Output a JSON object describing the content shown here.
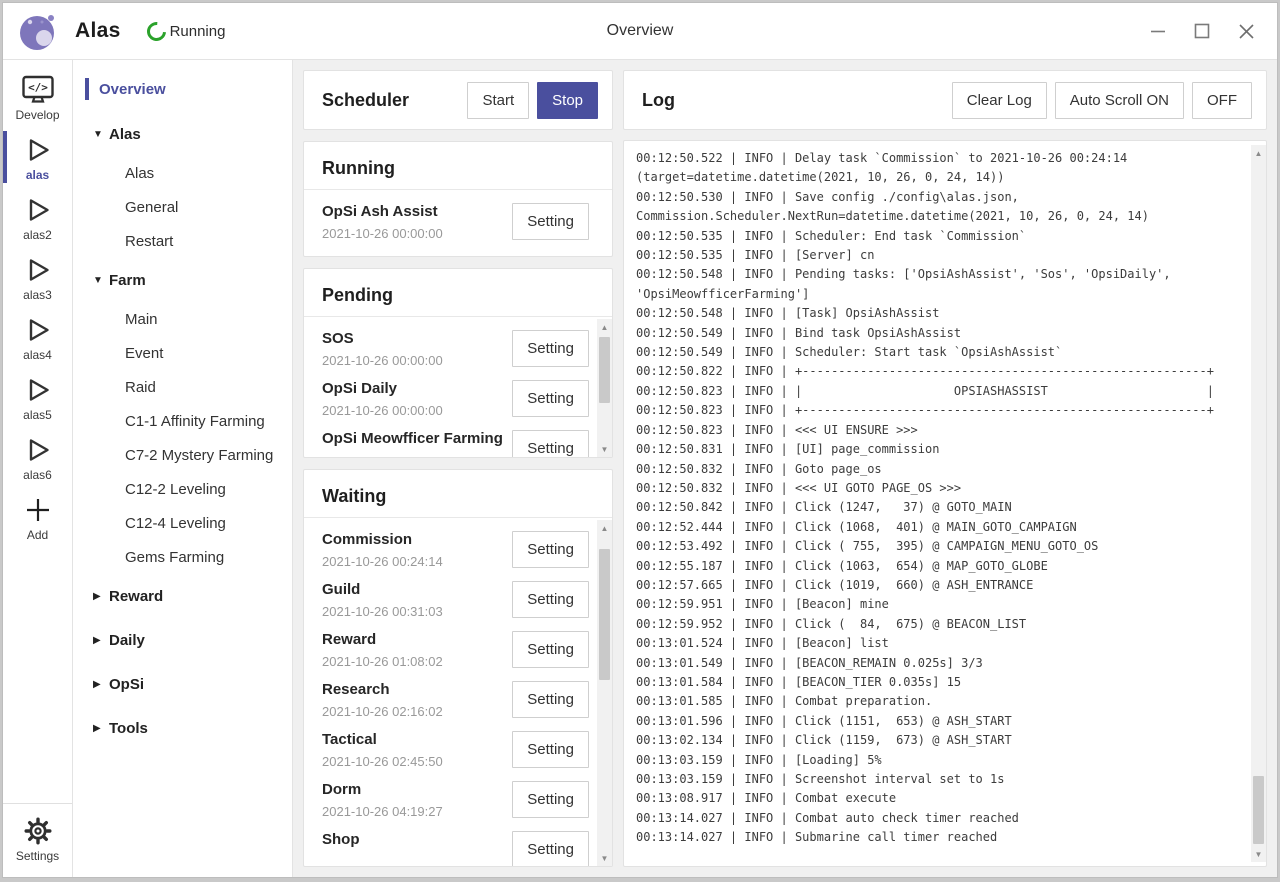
{
  "titlebar": {
    "app": "Alas",
    "status": "Running",
    "title": "Overview"
  },
  "colors": {
    "accent": "#4a4f9e",
    "status_green": "#2ba22b"
  },
  "rail": {
    "items": [
      {
        "id": "develop",
        "label": "Develop",
        "icon": "develop",
        "active": false
      },
      {
        "id": "alas",
        "label": "alas",
        "icon": "play",
        "active": true
      },
      {
        "id": "alas2",
        "label": "alas2",
        "icon": "play",
        "active": false
      },
      {
        "id": "alas3",
        "label": "alas3",
        "icon": "play",
        "active": false
      },
      {
        "id": "alas4",
        "label": "alas4",
        "icon": "play",
        "active": false
      },
      {
        "id": "alas5",
        "label": "alas5",
        "icon": "play",
        "active": false
      },
      {
        "id": "alas6",
        "label": "alas6",
        "icon": "play",
        "active": false
      },
      {
        "id": "add",
        "label": "Add",
        "icon": "add",
        "active": false
      }
    ],
    "settings_label": "Settings"
  },
  "nav": {
    "overview": "Overview",
    "groups": [
      {
        "label": "Alas",
        "expanded": true,
        "children": [
          "Alas",
          "General",
          "Restart"
        ]
      },
      {
        "label": "Farm",
        "expanded": true,
        "children": [
          "Main",
          "Event",
          "Raid",
          "C1-1 Affinity Farming",
          "C7-2 Mystery Farming",
          "C12-2 Leveling",
          "C12-4 Leveling",
          "Gems Farming"
        ]
      },
      {
        "label": "Reward",
        "expanded": false,
        "children": []
      },
      {
        "label": "Daily",
        "expanded": false,
        "children": []
      },
      {
        "label": "OpSi",
        "expanded": false,
        "children": []
      },
      {
        "label": "Tools",
        "expanded": false,
        "children": []
      }
    ]
  },
  "labels": {
    "setting": "Setting"
  },
  "scheduler": {
    "title": "Scheduler",
    "start": "Start",
    "stop": "Stop"
  },
  "running": {
    "title": "Running",
    "tasks": [
      {
        "name": "OpSi Ash Assist",
        "time": "2021-10-26 00:00:00"
      }
    ]
  },
  "pending": {
    "title": "Pending",
    "tasks": [
      {
        "name": "SOS",
        "time": "2021-10-26 00:00:00"
      },
      {
        "name": "OpSi Daily",
        "time": "2021-10-26 00:00:00"
      },
      {
        "name": "OpSi Meowfficer Farming",
        "time": ""
      }
    ]
  },
  "waiting": {
    "title": "Waiting",
    "tasks": [
      {
        "name": "Commission",
        "time": "2021-10-26 00:24:14"
      },
      {
        "name": "Guild",
        "time": "2021-10-26 00:31:03"
      },
      {
        "name": "Reward",
        "time": "2021-10-26 01:08:02"
      },
      {
        "name": "Research",
        "time": "2021-10-26 02:16:02"
      },
      {
        "name": "Tactical",
        "time": "2021-10-26 02:45:50"
      },
      {
        "name": "Dorm",
        "time": "2021-10-26 04:19:27"
      },
      {
        "name": "Shop",
        "time": ""
      }
    ]
  },
  "log": {
    "title": "Log",
    "clear": "Clear Log",
    "autoscroll": "Auto Scroll ON",
    "off": "OFF",
    "lines": [
      "00:12:50.522 | INFO | Delay task `Commission` to 2021-10-26 00:24:14",
      "(target=datetime.datetime(2021, 10, 26, 0, 24, 14))",
      "00:12:50.530 | INFO | Save config ./config\\alas.json,",
      "Commission.Scheduler.NextRun=datetime.datetime(2021, 10, 26, 0, 24, 14)",
      "00:12:50.535 | INFO | Scheduler: End task `Commission`",
      "00:12:50.535 | INFO | [Server] cn",
      "00:12:50.548 | INFO | Pending tasks: ['OpsiAshAssist', 'Sos', 'OpsiDaily',",
      "'OpsiMeowfficerFarming']",
      "00:12:50.548 | INFO | [Task] OpsiAshAssist",
      "00:12:50.549 | INFO | Bind task OpsiAshAssist",
      "00:12:50.549 | INFO | Scheduler: Start task `OpsiAshAssist`",
      "00:12:50.822 | INFO | +--------------------------------------------------------+",
      "00:12:50.823 | INFO | |                     OPSIASHASSIST                      |",
      "00:12:50.823 | INFO | +--------------------------------------------------------+",
      "00:12:50.823 | INFO | <<< UI ENSURE >>>",
      "00:12:50.831 | INFO | [UI] page_commission",
      "00:12:50.832 | INFO | Goto page_os",
      "00:12:50.832 | INFO | <<< UI GOTO PAGE_OS >>>",
      "00:12:50.842 | INFO | Click (1247,   37) @ GOTO_MAIN",
      "00:12:52.444 | INFO | Click (1068,  401) @ MAIN_GOTO_CAMPAIGN",
      "00:12:53.492 | INFO | Click ( 755,  395) @ CAMPAIGN_MENU_GOTO_OS",
      "00:12:55.187 | INFO | Click (1063,  654) @ MAP_GOTO_GLOBE",
      "00:12:57.665 | INFO | Click (1019,  660) @ ASH_ENTRANCE",
      "00:12:59.951 | INFO | [Beacon] mine",
      "00:12:59.952 | INFO | Click (  84,  675) @ BEACON_LIST",
      "00:13:01.524 | INFO | [Beacon] list",
      "00:13:01.549 | INFO | [BEACON_REMAIN 0.025s] 3/3",
      "00:13:01.584 | INFO | [BEACON_TIER 0.035s] 15",
      "00:13:01.585 | INFO | Combat preparation.",
      "00:13:01.596 | INFO | Click (1151,  653) @ ASH_START",
      "00:13:02.134 | INFO | Click (1159,  673) @ ASH_START",
      "00:13:03.159 | INFO | [Loading] 5%",
      "00:13:03.159 | INFO | Screenshot interval set to 1s",
      "00:13:08.917 | INFO | Combat execute",
      "00:13:14.027 | INFO | Combat auto check timer reached",
      "00:13:14.027 | INFO | Submarine call timer reached"
    ]
  }
}
